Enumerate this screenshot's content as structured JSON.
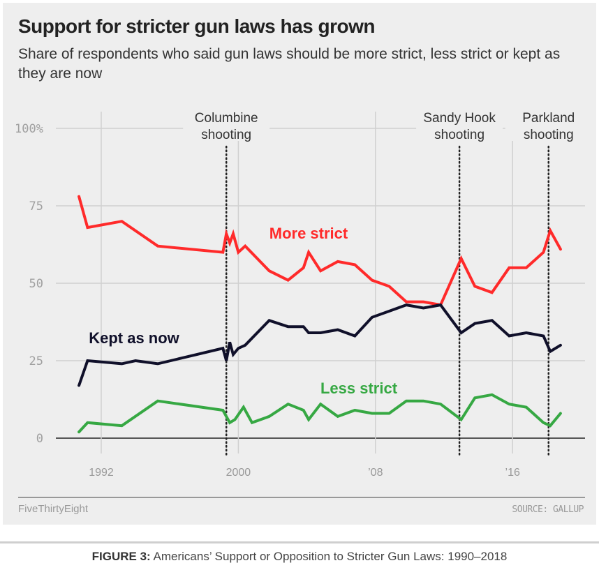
{
  "header": {
    "title": "Support for stricter gun laws has grown",
    "subtitle": "Share of respondents who said gun laws should be more strict, less strict or kept as they are now"
  },
  "footer": {
    "brand": "FiveThirtyEight",
    "source": "SOURCE: GALLUP"
  },
  "caption": {
    "label": "FIGURE 3:",
    "text": "Americans’ Support or Opposition to Stricter Gun Laws: 1990–2018"
  },
  "chart_data": {
    "type": "line",
    "title": "Support for stricter gun laws has grown",
    "subtitle": "Share of respondents who said gun laws should be more strict, less strict or kept as they are now",
    "xlabel": "",
    "ylabel": "",
    "xlim": [
      1990,
      2019
    ],
    "ylim": [
      0,
      100
    ],
    "grid": true,
    "y_ticks": [
      {
        "value": 100,
        "label": "100%"
      },
      {
        "value": 75,
        "label": "75"
      },
      {
        "value": 50,
        "label": "50"
      },
      {
        "value": 25,
        "label": "25"
      },
      {
        "value": 0,
        "label": "0"
      }
    ],
    "x_ticks": [
      {
        "value": 1992,
        "label": "1992"
      },
      {
        "value": 2000,
        "label": "2000"
      },
      {
        "value": 2008,
        "label": "’08"
      },
      {
        "value": 2016,
        "label": "’16"
      }
    ],
    "annotations": [
      {
        "x": 1999.3,
        "line1": "Columbine",
        "line2": "shooting"
      },
      {
        "x": 2012.9,
        "line1": "Sandy Hook",
        "line2": "shooting"
      },
      {
        "x": 2018.1,
        "line1": "Parkland",
        "line2": "shooting"
      }
    ],
    "series": [
      {
        "name": "More strict",
        "label": "More strict",
        "color": "#ff2a2a",
        "points": [
          [
            1990.7,
            78
          ],
          [
            1991.2,
            68
          ],
          [
            1993.2,
            70
          ],
          [
            1995.3,
            62
          ],
          [
            1999.1,
            60
          ],
          [
            1999.3,
            66
          ],
          [
            1999.5,
            63
          ],
          [
            1999.7,
            66
          ],
          [
            2000.0,
            60
          ],
          [
            2000.4,
            62
          ],
          [
            2001.8,
            54
          ],
          [
            2002.9,
            51
          ],
          [
            2003.8,
            55
          ],
          [
            2004.1,
            60
          ],
          [
            2004.8,
            54
          ],
          [
            2005.8,
            57
          ],
          [
            2006.8,
            56
          ],
          [
            2007.8,
            51
          ],
          [
            2008.8,
            49
          ],
          [
            2009.8,
            44
          ],
          [
            2010.8,
            44
          ],
          [
            2011.8,
            43
          ],
          [
            2013.0,
            58
          ],
          [
            2013.8,
            49
          ],
          [
            2014.8,
            47
          ],
          [
            2015.8,
            55
          ],
          [
            2016.8,
            55
          ],
          [
            2017.8,
            60
          ],
          [
            2018.2,
            67
          ],
          [
            2018.8,
            61
          ]
        ]
      },
      {
        "name": "Kept as now",
        "label": "Kept as now",
        "color": "#10102a",
        "points": [
          [
            1990.7,
            17
          ],
          [
            1991.2,
            25
          ],
          [
            1993.2,
            24
          ],
          [
            1994.0,
            25
          ],
          [
            1995.3,
            24
          ],
          [
            1999.1,
            29
          ],
          [
            1999.3,
            25
          ],
          [
            1999.5,
            31
          ],
          [
            1999.7,
            27
          ],
          [
            2000.0,
            29
          ],
          [
            2000.4,
            30
          ],
          [
            2001.8,
            38
          ],
          [
            2002.9,
            36
          ],
          [
            2003.8,
            36
          ],
          [
            2004.1,
            34
          ],
          [
            2004.8,
            34
          ],
          [
            2005.8,
            35
          ],
          [
            2006.8,
            33
          ],
          [
            2007.8,
            39
          ],
          [
            2008.8,
            41
          ],
          [
            2009.8,
            43
          ],
          [
            2010.8,
            42
          ],
          [
            2011.8,
            43
          ],
          [
            2013.0,
            34
          ],
          [
            2013.8,
            37
          ],
          [
            2014.8,
            38
          ],
          [
            2015.8,
            33
          ],
          [
            2016.8,
            34
          ],
          [
            2017.8,
            33
          ],
          [
            2018.2,
            28
          ],
          [
            2018.8,
            30
          ]
        ]
      },
      {
        "name": "Less strict",
        "label": "Less strict",
        "color": "#36a843",
        "points": [
          [
            1990.7,
            2
          ],
          [
            1991.2,
            5
          ],
          [
            1993.2,
            4
          ],
          [
            1995.3,
            12
          ],
          [
            1999.1,
            9
          ],
          [
            1999.5,
            5
          ],
          [
            1999.8,
            6
          ],
          [
            2000.3,
            10
          ],
          [
            2000.8,
            5
          ],
          [
            2001.8,
            7
          ],
          [
            2002.9,
            11
          ],
          [
            2003.8,
            9
          ],
          [
            2004.1,
            6
          ],
          [
            2004.8,
            11
          ],
          [
            2005.8,
            7
          ],
          [
            2006.8,
            9
          ],
          [
            2007.8,
            8
          ],
          [
            2008.8,
            8
          ],
          [
            2009.8,
            12
          ],
          [
            2010.8,
            12
          ],
          [
            2011.8,
            11
          ],
          [
            2013.0,
            6
          ],
          [
            2013.8,
            13
          ],
          [
            2014.8,
            14
          ],
          [
            2015.8,
            11
          ],
          [
            2016.8,
            10
          ],
          [
            2017.8,
            5
          ],
          [
            2018.2,
            4
          ],
          [
            2018.8,
            8
          ]
        ]
      }
    ]
  }
}
